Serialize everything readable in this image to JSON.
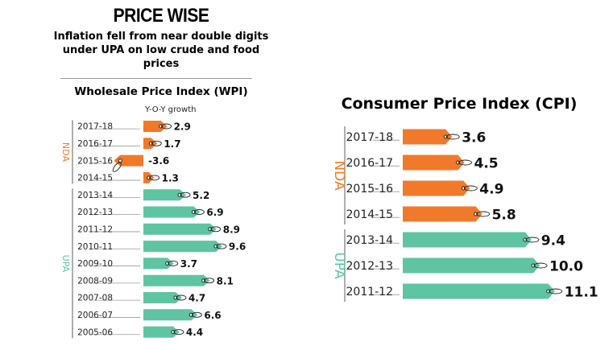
{
  "header": {
    "title": "PRICE WISE",
    "subtitle": "Inflation fell from near double digits under UPA on low crude and food prices"
  },
  "chart_data": [
    {
      "type": "bar",
      "title": "Wholesale Price Index (WPI)",
      "subtitle": "Y-O-Y growth",
      "groups": [
        {
          "name": "NDA",
          "color": "#f07a2a",
          "categories": [
            "2017-18",
            "2016-17",
            "2015-16",
            "2014-15"
          ],
          "values": [
            2.9,
            1.7,
            -3.6,
            1.3
          ]
        },
        {
          "name": "UPA",
          "color": "#5ec4a2",
          "categories": [
            "2013-14",
            "2012-13",
            "2011-12",
            "2010-11",
            "2009-10",
            "2008-09",
            "2007-08",
            "2006-07",
            "2005-06"
          ],
          "values": [
            5.2,
            6.9,
            8.9,
            9.6,
            3.7,
            8.1,
            4.7,
            6.6,
            4.4
          ]
        }
      ],
      "labels": [
        "2.9",
        "1.7",
        "-3.6",
        "1.3",
        "5.2",
        "6.9",
        "8.9",
        "9.6",
        "3.7",
        "8.1",
        "4.7",
        "6.6",
        "4.4"
      ]
    },
    {
      "type": "bar",
      "title": "Consumer Price Index (CPI)",
      "groups": [
        {
          "name": "NDA",
          "color": "#f07a2a",
          "categories": [
            "2017-18",
            "2016-17",
            "2015-16",
            "2014-15"
          ],
          "values": [
            3.6,
            4.5,
            4.9,
            5.8
          ]
        },
        {
          "name": "UPA",
          "color": "#5ec4a2",
          "categories": [
            "2013-14",
            "2012-13",
            "2011-12"
          ],
          "values": [
            9.4,
            10.0,
            11.1
          ]
        }
      ],
      "labels": [
        "3.6",
        "4.5",
        "4.9",
        "5.8",
        "9.4",
        "10.0",
        "11.1"
      ]
    }
  ]
}
